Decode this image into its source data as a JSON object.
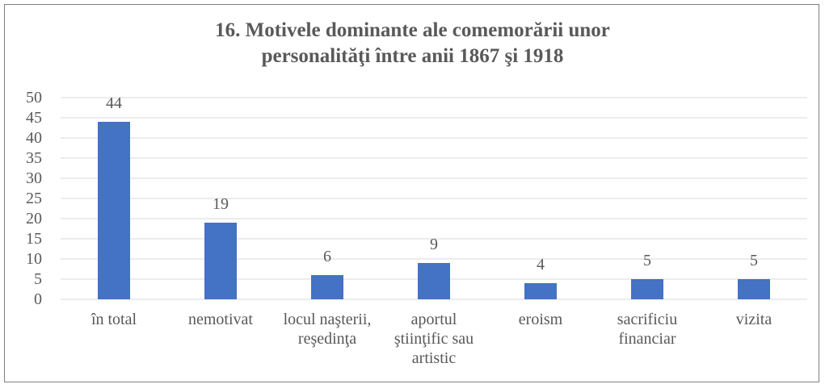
{
  "chart_data": {
    "type": "bar",
    "title": "16. Motivele dominante ale comemorării unor personalităţi între anii 1867 şi 1918",
    "categories": [
      "în total",
      "nemotivat",
      "locul naşterii, reşedinţa",
      "aportul ştiinţific sau artistic",
      "eroism",
      "sacrificiu financiar",
      "vizita"
    ],
    "values": [
      44,
      19,
      6,
      9,
      4,
      5,
      5
    ],
    "color": "#4472c4",
    "ylim": [
      0,
      50
    ],
    "yticks": [
      0,
      5,
      10,
      15,
      20,
      25,
      30,
      35,
      40,
      45,
      50
    ],
    "grid": true
  }
}
